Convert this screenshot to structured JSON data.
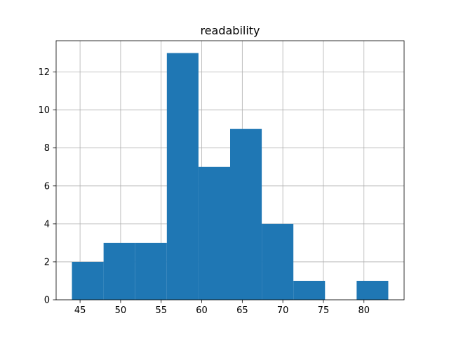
{
  "chart_data": {
    "type": "bar",
    "title": "readability",
    "xlabel": "",
    "ylabel": "",
    "xlim": [
      42.05,
      84.95
    ],
    "ylim": [
      0,
      13.65
    ],
    "x_ticks": [
      45,
      50,
      55,
      60,
      65,
      70,
      75,
      80
    ],
    "y_ticks": [
      0,
      2,
      4,
      6,
      8,
      10,
      12
    ],
    "bin_edges": [
      44,
      47.9,
      51.8,
      55.7,
      59.6,
      63.5,
      67.4,
      71.3,
      75.2,
      79.1,
      83
    ],
    "values": [
      2,
      3,
      3,
      13,
      7,
      9,
      4,
      1,
      0,
      1
    ],
    "grid": true,
    "bar_color": "#1f77b4",
    "grid_color": "#b0b0b0"
  }
}
